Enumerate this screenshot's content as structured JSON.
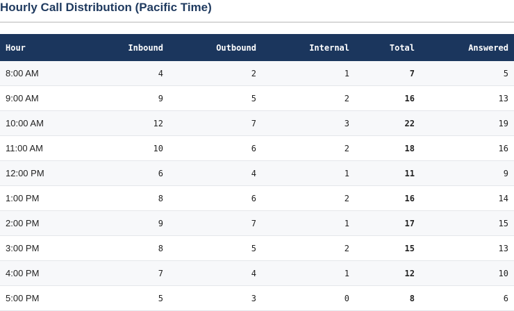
{
  "title": "Hourly Call Distribution (Pacific Time)",
  "table": {
    "columns": [
      "Hour",
      "Inbound",
      "Outbound",
      "Internal",
      "Total",
      "Answered"
    ],
    "rows": [
      [
        "8:00 AM",
        4,
        2,
        1,
        7,
        5
      ],
      [
        "9:00 AM",
        9,
        5,
        2,
        16,
        13
      ],
      [
        "10:00 AM",
        12,
        7,
        3,
        22,
        19
      ],
      [
        "11:00 AM",
        10,
        6,
        2,
        18,
        16
      ],
      [
        "12:00 PM",
        6,
        4,
        1,
        11,
        9
      ],
      [
        "1:00 PM",
        8,
        6,
        2,
        16,
        14
      ],
      [
        "2:00 PM",
        9,
        7,
        1,
        17,
        15
      ],
      [
        "3:00 PM",
        8,
        5,
        2,
        15,
        13
      ],
      [
        "4:00 PM",
        7,
        4,
        1,
        12,
        10
      ],
      [
        "5:00 PM",
        5,
        3,
        0,
        8,
        6
      ]
    ]
  }
}
